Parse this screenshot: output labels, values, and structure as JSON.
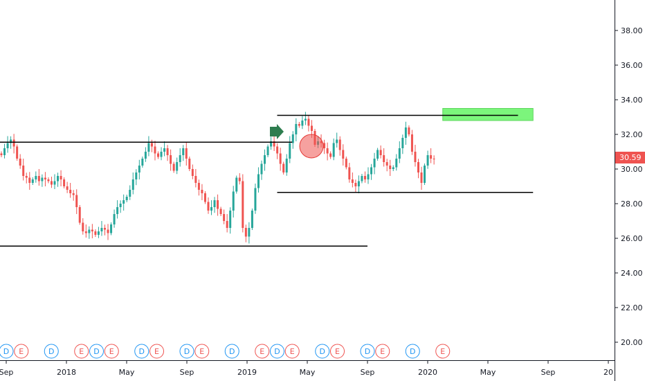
{
  "chart_data": {
    "type": "candlestick",
    "title": "",
    "xlabel": "",
    "ylabel": "",
    "ylim": [
      19.0,
      40.0
    ],
    "y_ticks": [
      "20.00",
      "22.00",
      "24.00",
      "26.00",
      "28.00",
      "30.00",
      "32.00",
      "34.00",
      "36.00",
      "38.00"
    ],
    "x_ticks": [
      {
        "label": "Sep",
        "date": "2017-09"
      },
      {
        "label": "2018",
        "date": "2018-01"
      },
      {
        "label": "May",
        "date": "2018-05"
      },
      {
        "label": "Sep",
        "date": "2018-09"
      },
      {
        "label": "2019",
        "date": "2019-01"
      },
      {
        "label": "May",
        "date": "2019-05"
      },
      {
        "label": "Sep",
        "date": "2019-09"
      },
      {
        "label": "2020",
        "date": "2020-01"
      },
      {
        "label": "May",
        "date": "2020-05"
      },
      {
        "label": "Sep",
        "date": "2020-09"
      },
      {
        "label": "20",
        "date": "2021-01"
      }
    ],
    "current_price": "30.59",
    "colors": {
      "up": "#26a69a",
      "down": "#ef5350",
      "line": "#000000",
      "zone": "#7cf57c",
      "circle": "#ef5350",
      "arrow": "#2e7d4f",
      "div": "#2196f3"
    },
    "closes": [
      30.8,
      31.2,
      31.5,
      31.7,
      31.3,
      30.6,
      30.2,
      29.6,
      29.5,
      29.2,
      29.4,
      29.6,
      29.3,
      29.5,
      29.4,
      29.3,
      29.1,
      29.3,
      29.6,
      29.4,
      29.0,
      28.8,
      28.6,
      28.5,
      27.8,
      26.9,
      26.4,
      26.3,
      26.5,
      26.4,
      26.2,
      26.4,
      26.6,
      26.5,
      26.3,
      26.8,
      27.4,
      27.8,
      28.0,
      28.2,
      28.4,
      28.8,
      29.4,
      29.8,
      30.2,
      30.6,
      31.0,
      31.5,
      31.3,
      30.9,
      30.7,
      31.0,
      31.2,
      30.8,
      30.3,
      29.9,
      30.4,
      30.8,
      31.2,
      30.6,
      30.0,
      29.6,
      29.2,
      28.8,
      28.6,
      28.1,
      27.6,
      27.8,
      28.2,
      27.7,
      27.4,
      27.0,
      26.6,
      27.6,
      28.7,
      29.5,
      29.3,
      26.6,
      26.1,
      26.6,
      27.6,
      28.9,
      29.7,
      30.3,
      30.8,
      31.3,
      31.6,
      31.3,
      30.9,
      30.3,
      29.8,
      30.6,
      31.5,
      32.0,
      32.6,
      32.5,
      32.8,
      32.9,
      32.5,
      32.2,
      31.4,
      31.6,
      31.5,
      31.2,
      30.9,
      30.7,
      31.5,
      31.7,
      31.1,
      30.6,
      30.1,
      29.4,
      29.2,
      29.0,
      29.3,
      29.6,
      29.4,
      29.7,
      30.1,
      30.6,
      31.1,
      30.8,
      30.4,
      30.2,
      30.0,
      30.1,
      30.6,
      31.2,
      31.8,
      32.4,
      32.0,
      31.0,
      30.4,
      29.8,
      29.2,
      30.2,
      30.8,
      30.6,
      30.59
    ],
    "support_resistance_lines": [
      {
        "from": "2017-08",
        "to": "2019-04",
        "level": 31.55
      },
      {
        "from": "2017-08",
        "to": "2019-09",
        "level": 25.55
      },
      {
        "from": "2019-03",
        "to": "2020-07",
        "level": 33.1
      },
      {
        "from": "2019-03",
        "to": "2020-08",
        "level": 28.65
      }
    ],
    "target_zone": {
      "from": "2020-02",
      "to": "2020-08",
      "low": 32.8,
      "high": 33.5
    },
    "events": [
      {
        "type": "D",
        "date": "2017-09"
      },
      {
        "type": "E",
        "date": "2017-10"
      },
      {
        "type": "D",
        "date": "2017-12"
      },
      {
        "type": "E",
        "date": "2018-02"
      },
      {
        "type": "D",
        "date": "2018-03"
      },
      {
        "type": "E",
        "date": "2018-04"
      },
      {
        "type": "D",
        "date": "2018-06"
      },
      {
        "type": "E",
        "date": "2018-07"
      },
      {
        "type": "D",
        "date": "2018-09"
      },
      {
        "type": "E",
        "date": "2018-10"
      },
      {
        "type": "D",
        "date": "2018-12"
      },
      {
        "type": "E",
        "date": "2019-02"
      },
      {
        "type": "D",
        "date": "2019-03"
      },
      {
        "type": "E",
        "date": "2019-04"
      },
      {
        "type": "D",
        "date": "2019-06"
      },
      {
        "type": "E",
        "date": "2019-07"
      },
      {
        "type": "D",
        "date": "2019-09"
      },
      {
        "type": "E",
        "date": "2019-10"
      },
      {
        "type": "D",
        "date": "2019-12"
      },
      {
        "type": "E",
        "date": "2020-02"
      }
    ]
  }
}
